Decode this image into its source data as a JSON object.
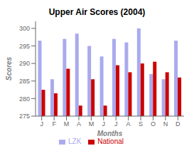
{
  "chart_data": {
    "type": "bar",
    "title": "Upper Air Scores (2004)",
    "xlabel": "Months",
    "ylabel": "Scores",
    "categories": [
      "J",
      "F",
      "M",
      "A",
      "M",
      "J",
      "J",
      "A",
      "S",
      "O",
      "N",
      "D"
    ],
    "series": [
      {
        "name": "LZK",
        "color": "#aaaaee",
        "values": [
          296.5,
          285.5,
          297,
          298.5,
          295,
          292,
          297,
          296,
          300,
          287,
          285.5,
          296.5
        ]
      },
      {
        "name": "National",
        "color": "#cc0000",
        "values": [
          282.5,
          281.5,
          288.5,
          278,
          285.5,
          278,
          289.5,
          287.5,
          290,
          290.5,
          287.5,
          286
        ]
      }
    ],
    "ylim": [
      275,
      302
    ],
    "yticks": [
      275,
      280,
      285,
      290,
      295,
      300
    ],
    "grid": false,
    "legend": "bottom"
  }
}
